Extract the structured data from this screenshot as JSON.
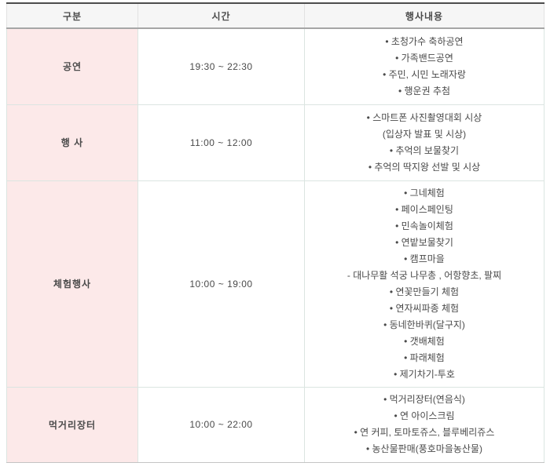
{
  "colors": {
    "accent_pink": "#fce9e9",
    "header_bg": "#f6f6f6",
    "top_border": "#4c4c4c",
    "header_divider": "#a6a6a6",
    "grid_line": "#dbe5e1",
    "outer_line": "#c4c4c4",
    "text": "#4a4a4a"
  },
  "table": {
    "headers": [
      "구분",
      "시간",
      "행사내용"
    ],
    "rows": [
      {
        "category": "공연",
        "time": "19:30 ~ 22:30",
        "items": [
          "• 초청가수 축하공연",
          "• 가족밴드공연",
          "• 주민, 시민 노래자랑",
          "• 행운권 추첨"
        ]
      },
      {
        "category": "행 사",
        "time": "11:00 ~ 12:00",
        "items": [
          "• 스마트폰 사진촬영대회 시상",
          "(입상자 발표 및 시상)",
          "• 추억의 보물찾기",
          "• 추억의 딱지왕 선발 및 시상"
        ]
      },
      {
        "category": "체험행사",
        "time": "10:00 ~ 19:00",
        "items": [
          "• 그네체험",
          "• 페이스페인팅",
          "• 민속놀이체험",
          "• 연밭보물찾기",
          "• 캠프마을",
          "- 대나무활 석궁 나무총 , 어항향초, 팔찌",
          "• 연꽃만들기 체험",
          "• 연자씨파종 체험",
          "• 동네한바퀴(달구지)",
          "• 갯배체험",
          "• 파래체험",
          "• 제기차기-투호"
        ]
      },
      {
        "category": "먹거리장터",
        "time": "10:00 ~ 22:00",
        "items": [
          "• 먹거리장터(연음식)",
          "• 연 아이스크림",
          "• 연 커피, 토마토쥬스, 블루베리쥬스",
          "• 농산물판매(풍호마을농산물)"
        ]
      }
    ]
  }
}
